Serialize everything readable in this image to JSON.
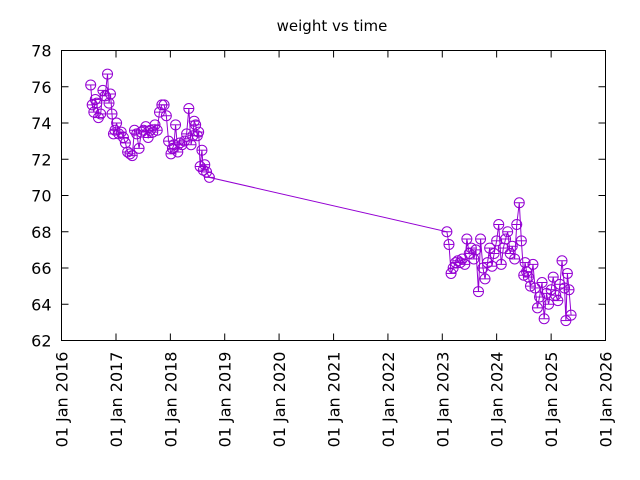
{
  "chart_data": {
    "type": "line",
    "title": "weight vs time",
    "xlabel": "",
    "ylabel": "",
    "x_axis_type": "date",
    "xlim": [
      "2016-01-01",
      "2026-01-01"
    ],
    "ylim": [
      62,
      78
    ],
    "x_ticks": [
      "01 Jan 2016",
      "01 Jan 2017",
      "01 Jan 2018",
      "01 Jan 2019",
      "01 Jan 2020",
      "01 Jan 2021",
      "01 Jan 2022",
      "01 Jan 2023",
      "01 Jan 2024",
      "01 Jan 2025",
      "01 Jan 2026"
    ],
    "y_ticks": [
      62,
      64,
      66,
      68,
      70,
      72,
      74,
      76,
      78
    ],
    "grid": false,
    "legend": "none",
    "series_color": "#9400d3",
    "marker": "circle",
    "series": [
      {
        "x": [
          "2016-07-15",
          "2016-07-25",
          "2016-08-05",
          "2016-08-15",
          "2016-08-25",
          "2016-09-05",
          "2016-09-20",
          "2016-10-05",
          "2016-10-20",
          "2016-11-05",
          "2016-11-15",
          "2016-11-25",
          "2016-12-05",
          "2016-12-15",
          "2016-12-25",
          "2017-01-05",
          "2017-01-20",
          "2017-02-05",
          "2017-02-20",
          "2017-03-05",
          "2017-03-20",
          "2017-04-05",
          "2017-04-20",
          "2017-05-05",
          "2017-05-20",
          "2017-06-05",
          "2017-06-20",
          "2017-07-05",
          "2017-07-20",
          "2017-08-05",
          "2017-08-20",
          "2017-09-05",
          "2017-09-20",
          "2017-10-05",
          "2017-10-20",
          "2017-11-05",
          "2017-11-20",
          "2017-12-05",
          "2017-12-20",
          "2018-01-05",
          "2018-01-15",
          "2018-01-25",
          "2018-02-05",
          "2018-02-20",
          "2018-03-05",
          "2018-03-20",
          "2018-04-05",
          "2018-04-20",
          "2018-05-05",
          "2018-05-20",
          "2018-06-01",
          "2018-06-10",
          "2018-06-20",
          "2018-07-01",
          "2018-07-10",
          "2018-07-20",
          "2018-08-01",
          "2018-08-10",
          "2018-08-20",
          "2018-09-01",
          "2018-09-20",
          "2023-02-01",
          "2023-02-15",
          "2023-03-01",
          "2023-03-15",
          "2023-04-01",
          "2023-04-15",
          "2023-05-01",
          "2023-05-15",
          "2023-06-01",
          "2023-06-15",
          "2023-07-01",
          "2023-07-15",
          "2023-08-01",
          "2023-08-15",
          "2023-09-01",
          "2023-09-15",
          "2023-10-01",
          "2023-10-15",
          "2023-11-01",
          "2023-11-15",
          "2023-12-01",
          "2023-12-15",
          "2024-01-01",
          "2024-01-15",
          "2024-02-01",
          "2024-02-15",
          "2024-03-01",
          "2024-03-15",
          "2024-04-01",
          "2024-04-15",
          "2024-05-01",
          "2024-05-15",
          "2024-06-01",
          "2024-06-15",
          "2024-07-01",
          "2024-07-10",
          "2024-07-20",
          "2024-08-01",
          "2024-08-15",
          "2024-09-01",
          "2024-09-15",
          "2024-10-01",
          "2024-10-15",
          "2024-11-01",
          "2024-11-15",
          "2024-12-01",
          "2024-12-15",
          "2025-01-01",
          "2025-01-15",
          "2025-02-01",
          "2025-02-15",
          "2025-03-01",
          "2025-03-15",
          "2025-04-01",
          "2025-04-10",
          "2025-04-20",
          "2025-05-01",
          "2025-05-15"
        ],
        "y": [
          76.1,
          75.0,
          74.6,
          75.3,
          75.1,
          74.3,
          74.5,
          75.8,
          75.5,
          76.7,
          75.1,
          75.6,
          74.5,
          73.4,
          73.6,
          74.0,
          73.4,
          73.5,
          73.2,
          72.9,
          72.4,
          72.3,
          72.2,
          73.6,
          73.4,
          72.6,
          73.5,
          73.6,
          73.8,
          73.2,
          73.6,
          73.5,
          73.9,
          73.6,
          74.6,
          75.0,
          75.0,
          74.4,
          73.0,
          72.3,
          72.6,
          72.8,
          73.9,
          72.4,
          72.9,
          72.8,
          73.0,
          73.4,
          74.8,
          72.8,
          73.3,
          74.1,
          73.9,
          73.3,
          73.5,
          71.6,
          72.5,
          71.4,
          71.7,
          71.3,
          71.0,
          68.0,
          67.3,
          65.7,
          66.0,
          66.3,
          66.4,
          66.3,
          66.5,
          66.2,
          67.6,
          66.8,
          67.1,
          66.5,
          67.0,
          64.7,
          67.6,
          66.0,
          65.4,
          66.3,
          67.1,
          66.1,
          66.8,
          67.5,
          68.4,
          66.2,
          67.1,
          67.6,
          68.0,
          66.8,
          67.2,
          66.5,
          68.4,
          69.6,
          67.5,
          65.6,
          66.3,
          65.8,
          65.5,
          65.0,
          66.2,
          64.9,
          63.8,
          64.4,
          65.2,
          63.2,
          64.6,
          64.0,
          64.8,
          65.5,
          64.5,
          64.2,
          65.1,
          66.4,
          64.9,
          63.1,
          65.7,
          64.8,
          63.4
        ]
      }
    ]
  }
}
